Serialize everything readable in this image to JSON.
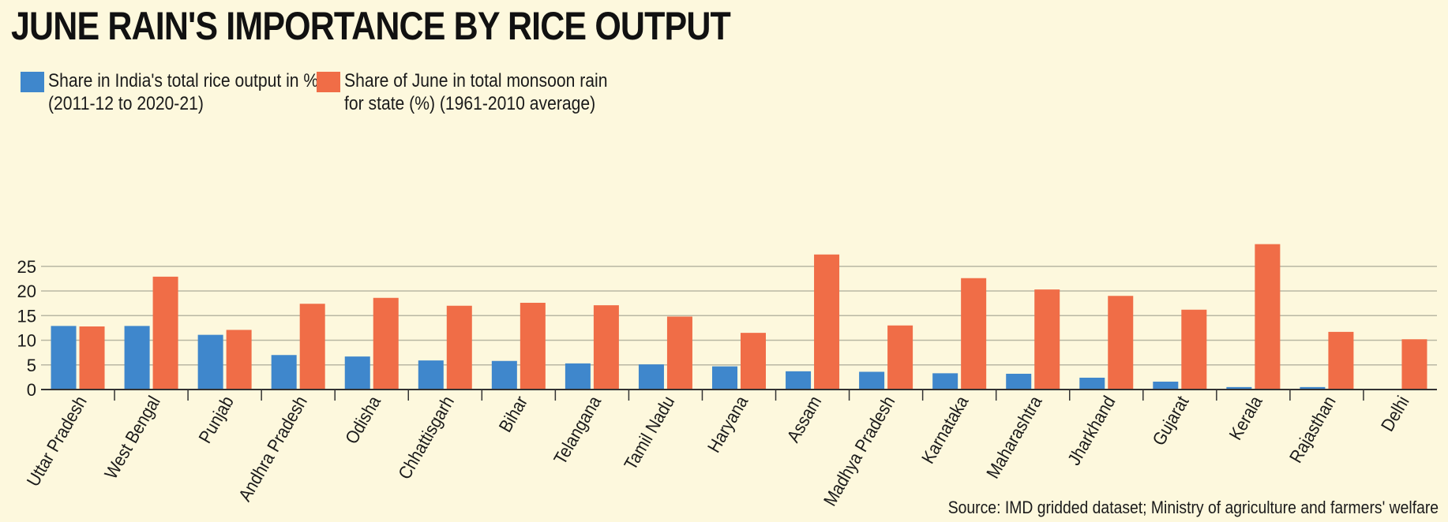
{
  "title": "JUNE RAIN'S IMPORTANCE BY RICE OUTPUT",
  "source": "Source: IMD gridded dataset; Ministry of agriculture and farmers' welfare",
  "colors": {
    "blue": "#3f87cc",
    "orange": "#f06d47",
    "background": "#fdf8dd",
    "grid": "#b9b7a3"
  },
  "chart_data": {
    "type": "bar",
    "categories": [
      "Uttar Pradesh",
      "West Bengal",
      "Punjab",
      "Andhra Pradesh",
      "Odisha",
      "Chhattisgarh",
      "Bihar",
      "Telangana",
      "Tamil Nadu",
      "Haryana",
      "Assam",
      "Madhya Pradesh",
      "Karnataka",
      "Maharashtra",
      "Jharkhand",
      "Gujarat",
      "Kerala",
      "Rajasthan",
      "Delhi"
    ],
    "series": [
      {
        "name": "Share in India's total rice output in % (2011-12 to 2020-21)",
        "color": "#3f87cc",
        "values": [
          12.9,
          12.9,
          11.1,
          7.0,
          6.7,
          5.9,
          5.8,
          5.3,
          5.1,
          4.7,
          3.7,
          3.6,
          3.3,
          3.2,
          2.4,
          1.6,
          0.5,
          0.5,
          0
        ]
      },
      {
        "name": "Share of June in total monsoon rain for state (%) (1961-2010 average)",
        "color": "#f06d47",
        "values": [
          12.8,
          22.9,
          12.1,
          17.4,
          18.6,
          17.0,
          17.6,
          17.1,
          14.8,
          11.5,
          27.4,
          13.0,
          22.6,
          20.3,
          19.0,
          16.2,
          29.5,
          11.7,
          10.2
        ]
      }
    ],
    "yticks": [
      0,
      5,
      10,
      15,
      20,
      25
    ],
    "ylim": [
      0,
      30
    ],
    "grid": true,
    "legend": "top-left"
  }
}
